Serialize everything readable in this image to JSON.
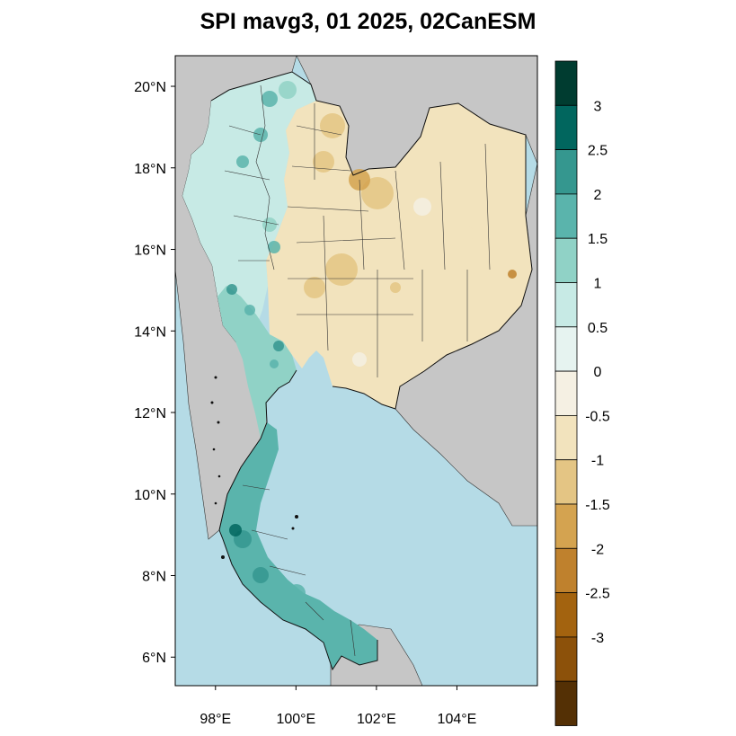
{
  "title": "SPI mavg3, 01 2025, 02CanESM",
  "map": {
    "lat_range": [
      5.3,
      20.75
    ],
    "lon_range": [
      97.0,
      106.0
    ],
    "colors": {
      "ocean": "#b5dbe6",
      "neighbor_land": "#c6c6c6",
      "border": "#333333"
    },
    "lat_ticks": [
      {
        "value": 20,
        "label": "20°N"
      },
      {
        "value": 18,
        "label": "18°N"
      },
      {
        "value": 16,
        "label": "16°N"
      },
      {
        "value": 14,
        "label": "14°N"
      },
      {
        "value": 12,
        "label": "12°N"
      },
      {
        "value": 10,
        "label": "10°N"
      },
      {
        "value": 8,
        "label": "8°N"
      },
      {
        "value": 6,
        "label": "6°N"
      }
    ],
    "lon_ticks": [
      {
        "value": 98,
        "label": "98°E"
      },
      {
        "value": 100,
        "label": "100°E"
      },
      {
        "value": 102,
        "label": "102°E"
      },
      {
        "value": 104,
        "label": "104°E"
      }
    ],
    "regions": [
      {
        "name": "north-west",
        "spi_class": "0.5 to 1"
      },
      {
        "name": "western-border",
        "spi_class": "1 to 1.5"
      },
      {
        "name": "north-central",
        "spi_class": "-1 to -0.5"
      },
      {
        "name": "north-east",
        "spi_class": "-1 to -0.5"
      },
      {
        "name": "central",
        "spi_class": "-1 to -0.5"
      },
      {
        "name": "east",
        "spi_class": "-1 to -0.5"
      },
      {
        "name": "south",
        "spi_class": "1.5 to 2"
      }
    ]
  },
  "colorbar": {
    "bins": [
      {
        "color": "#003c30"
      },
      {
        "color": "#01665e"
      },
      {
        "color": "#35978f"
      },
      {
        "color": "#5ab4ac"
      },
      {
        "color": "#90d2c6"
      },
      {
        "color": "#c7eae5"
      },
      {
        "color": "#e6f3f0"
      },
      {
        "color": "#f5f0e3"
      },
      {
        "color": "#f2e3bd"
      },
      {
        "color": "#e4c584"
      },
      {
        "color": "#d4a350"
      },
      {
        "color": "#bf812d"
      },
      {
        "color": "#a3630f"
      },
      {
        "color": "#8c510a"
      },
      {
        "color": "#543005"
      }
    ],
    "labels": [
      "3",
      "2.5",
      "2",
      "1.5",
      "1",
      "0.5",
      "0",
      "-0.5",
      "-1",
      "-1.5",
      "-2",
      "-2.5",
      "-3"
    ]
  }
}
